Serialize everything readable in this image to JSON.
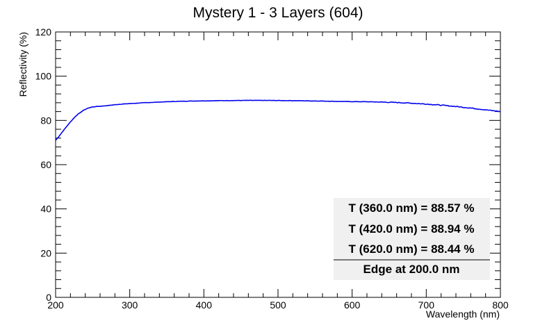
{
  "chart_data": {
    "type": "line",
    "title": "Mystery 1 - 3 Layers (604)",
    "xlabel": "Wavelength (nm)",
    "ylabel": "Reflectivity (%)",
    "xlim": [
      200,
      800
    ],
    "ylim": [
      0,
      120
    ],
    "x_ticks": [
      200,
      300,
      400,
      500,
      600,
      700,
      800
    ],
    "y_ticks": [
      0,
      20,
      40,
      60,
      80,
      100,
      120
    ],
    "grid": false,
    "series": [
      {
        "color": "#0000ee",
        "x": [
          200,
          205,
          210,
          215,
          220,
          225,
          230,
          235,
          240,
          245,
          250,
          255,
          260,
          270,
          280,
          290,
          300,
          320,
          340,
          360,
          380,
          400,
          420,
          440,
          460,
          480,
          500,
          520,
          540,
          560,
          580,
          600,
          620,
          640,
          660,
          680,
          700,
          720,
          740,
          760,
          780,
          800
        ],
        "y": [
          71.0,
          73.0,
          75.2,
          77.3,
          79.3,
          81.2,
          82.8,
          84.0,
          85.0,
          85.7,
          86.1,
          86.3,
          86.4,
          86.7,
          87.1,
          87.4,
          87.6,
          88.0,
          88.3,
          88.57,
          88.75,
          88.85,
          88.94,
          89.0,
          89.05,
          89.05,
          89.0,
          88.95,
          88.85,
          88.75,
          88.6,
          88.5,
          88.44,
          88.3,
          88.1,
          87.8,
          87.4,
          86.9,
          86.3,
          85.6,
          84.8,
          84.0
        ]
      }
    ],
    "annotations": {
      "lines": [
        "T (360.0 nm) = 88.57 %",
        "T (420.0 nm) = 88.94 %",
        "T (620.0 nm) = 88.44 %"
      ],
      "edge": "Edge at 200.0 nm"
    }
  }
}
